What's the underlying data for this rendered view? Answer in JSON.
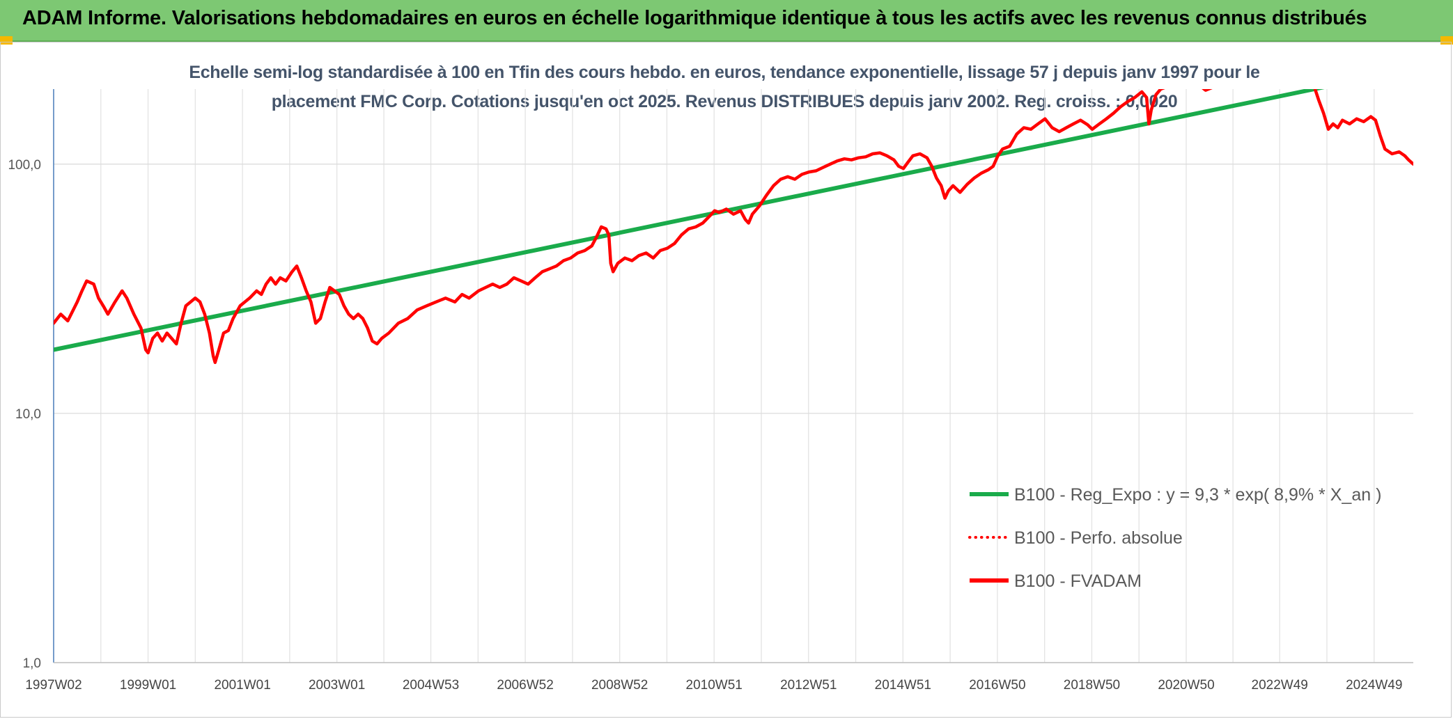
{
  "header": {
    "title": "ADAM Informe. Valorisations hebdomadaires en euros en échelle logarithmique identique à tous les actifs avec les revenus connus distribués"
  },
  "chart_data": {
    "type": "line",
    "subtitle_lines": [
      "Echelle semi-log standardisée à 100 en Tfin des cours hebdo. en euros, tendance exponentielle, lissage 57 j depuis janv 1997 pour le",
      "placement FMC Corp. Cotations jusqu'en oct 2025. Revenus DISTRIBUES depuis janv 2002. Reg. croiss. : 0,0020"
    ],
    "y_scale": "log",
    "ylim": [
      1,
      200
    ],
    "y_ticks": [
      {
        "value": 1,
        "label": "1,0"
      },
      {
        "value": 10,
        "label": "10,0"
      },
      {
        "value": 100,
        "label": "100,0"
      }
    ],
    "x_range": [
      1997.0,
      2025.8
    ],
    "x_ticks": [
      {
        "value": 1997.0,
        "label": "1997W02"
      },
      {
        "value": 1999.0,
        "label": "1999W01"
      },
      {
        "value": 2001.0,
        "label": "2001W01"
      },
      {
        "value": 2003.0,
        "label": "2003W01"
      },
      {
        "value": 2004.99,
        "label": "2004W53"
      },
      {
        "value": 2006.99,
        "label": "2006W52"
      },
      {
        "value": 2008.99,
        "label": "2008W52"
      },
      {
        "value": 2010.99,
        "label": "2010W51"
      },
      {
        "value": 2012.99,
        "label": "2012W51"
      },
      {
        "value": 2014.99,
        "label": "2014W51"
      },
      {
        "value": 2016.99,
        "label": "2016W50"
      },
      {
        "value": 2018.99,
        "label": "2018W50"
      },
      {
        "value": 2020.99,
        "label": "2020W50"
      },
      {
        "value": 2022.97,
        "label": "2022W49"
      },
      {
        "value": 2024.97,
        "label": "2024W49"
      }
    ],
    "grid": true,
    "legend_position": "bottom-right",
    "series": [
      {
        "name": "B100 - Reg_Expo : y = 9,3 * exp( 8,9% *  X_an )",
        "color": "#1aab4b",
        "style": "solid",
        "points": [
          [
            1997.0,
            18.0
          ],
          [
            2024.5,
            215.0
          ]
        ]
      },
      {
        "name": "B100 - Perfo. absolue",
        "color": "#ff0000",
        "style": "dotted",
        "points": []
      },
      {
        "name": "B100 - FVADAM",
        "color": "#ff0000",
        "style": "solid",
        "points": [
          [
            1997.0,
            23
          ],
          [
            1997.15,
            25
          ],
          [
            1997.3,
            23.5
          ],
          [
            1997.5,
            28
          ],
          [
            1997.6,
            31
          ],
          [
            1997.7,
            34
          ],
          [
            1997.85,
            33
          ],
          [
            1997.95,
            29
          ],
          [
            1998.05,
            27
          ],
          [
            1998.15,
            25
          ],
          [
            1998.3,
            28
          ],
          [
            1998.45,
            31
          ],
          [
            1998.55,
            29
          ],
          [
            1998.7,
            25
          ],
          [
            1998.85,
            22
          ],
          [
            1998.95,
            18
          ],
          [
            1999.0,
            17.5
          ],
          [
            1999.1,
            20
          ],
          [
            1999.2,
            21
          ],
          [
            1999.3,
            19.5
          ],
          [
            1999.4,
            21
          ],
          [
            1999.5,
            20
          ],
          [
            1999.6,
            19
          ],
          [
            1999.7,
            23
          ],
          [
            1999.8,
            27
          ],
          [
            1999.9,
            28
          ],
          [
            2000.0,
            29
          ],
          [
            2000.1,
            28
          ],
          [
            2000.2,
            25
          ],
          [
            2000.3,
            21
          ],
          [
            2000.38,
            17
          ],
          [
            2000.42,
            16
          ],
          [
            2000.5,
            18
          ],
          [
            2000.6,
            21
          ],
          [
            2000.7,
            21.5
          ],
          [
            2000.8,
            24
          ],
          [
            2000.95,
            27
          ],
          [
            2001.05,
            28
          ],
          [
            2001.15,
            29
          ],
          [
            2001.3,
            31
          ],
          [
            2001.4,
            30
          ],
          [
            2001.5,
            33
          ],
          [
            2001.6,
            35
          ],
          [
            2001.7,
            33
          ],
          [
            2001.8,
            35
          ],
          [
            2001.92,
            34
          ],
          [
            2002.05,
            37
          ],
          [
            2002.15,
            39
          ],
          [
            2002.25,
            35
          ],
          [
            2002.35,
            31
          ],
          [
            2002.45,
            28
          ],
          [
            2002.55,
            23
          ],
          [
            2002.65,
            24
          ],
          [
            2002.75,
            28
          ],
          [
            2002.85,
            32
          ],
          [
            2002.95,
            31
          ],
          [
            2003.05,
            30
          ],
          [
            2003.15,
            27
          ],
          [
            2003.25,
            25
          ],
          [
            2003.35,
            24
          ],
          [
            2003.45,
            25
          ],
          [
            2003.55,
            24
          ],
          [
            2003.65,
            22
          ],
          [
            2003.75,
            19.5
          ],
          [
            2003.85,
            19
          ],
          [
            2003.95,
            20
          ],
          [
            2004.1,
            21
          ],
          [
            2004.3,
            23
          ],
          [
            2004.5,
            24
          ],
          [
            2004.7,
            26
          ],
          [
            2004.9,
            27
          ],
          [
            2005.1,
            28
          ],
          [
            2005.3,
            29
          ],
          [
            2005.5,
            28
          ],
          [
            2005.65,
            30
          ],
          [
            2005.8,
            29
          ],
          [
            2006.0,
            31
          ],
          [
            2006.15,
            32
          ],
          [
            2006.3,
            33
          ],
          [
            2006.45,
            32
          ],
          [
            2006.6,
            33
          ],
          [
            2006.75,
            35
          ],
          [
            2006.9,
            34
          ],
          [
            2007.05,
            33
          ],
          [
            2007.2,
            35
          ],
          [
            2007.35,
            37
          ],
          [
            2007.5,
            38
          ],
          [
            2007.65,
            39
          ],
          [
            2007.8,
            41
          ],
          [
            2007.95,
            42
          ],
          [
            2008.1,
            44
          ],
          [
            2008.25,
            45
          ],
          [
            2008.4,
            47
          ],
          [
            2008.5,
            51
          ],
          [
            2008.6,
            56
          ],
          [
            2008.7,
            55
          ],
          [
            2008.76,
            52
          ],
          [
            2008.8,
            40
          ],
          [
            2008.85,
            37
          ],
          [
            2008.95,
            40
          ],
          [
            2009.1,
            42
          ],
          [
            2009.25,
            41
          ],
          [
            2009.4,
            43
          ],
          [
            2009.55,
            44
          ],
          [
            2009.7,
            42
          ],
          [
            2009.85,
            45
          ],
          [
            2010.0,
            46
          ],
          [
            2010.15,
            48
          ],
          [
            2010.3,
            52
          ],
          [
            2010.45,
            55
          ],
          [
            2010.6,
            56
          ],
          [
            2010.75,
            58
          ],
          [
            2010.9,
            62
          ],
          [
            2011.0,
            65
          ],
          [
            2011.1,
            64
          ],
          [
            2011.25,
            66
          ],
          [
            2011.4,
            63
          ],
          [
            2011.55,
            65
          ],
          [
            2011.65,
            60
          ],
          [
            2011.72,
            58
          ],
          [
            2011.8,
            63
          ],
          [
            2011.95,
            68
          ],
          [
            2012.1,
            75
          ],
          [
            2012.25,
            82
          ],
          [
            2012.4,
            87
          ],
          [
            2012.55,
            89
          ],
          [
            2012.7,
            87
          ],
          [
            2012.85,
            91
          ],
          [
            2013.0,
            93
          ],
          [
            2013.15,
            94
          ],
          [
            2013.3,
            97
          ],
          [
            2013.45,
            100
          ],
          [
            2013.6,
            103
          ],
          [
            2013.75,
            105
          ],
          [
            2013.9,
            104
          ],
          [
            2014.05,
            106
          ],
          [
            2014.2,
            107
          ],
          [
            2014.35,
            110
          ],
          [
            2014.5,
            111
          ],
          [
            2014.65,
            108
          ],
          [
            2014.8,
            104
          ],
          [
            2014.9,
            98
          ],
          [
            2015.0,
            96
          ],
          [
            2015.1,
            102
          ],
          [
            2015.2,
            108
          ],
          [
            2015.35,
            110
          ],
          [
            2015.5,
            106
          ],
          [
            2015.6,
            98
          ],
          [
            2015.7,
            88
          ],
          [
            2015.8,
            82
          ],
          [
            2015.88,
            73
          ],
          [
            2015.95,
            78
          ],
          [
            2016.05,
            82
          ],
          [
            2016.2,
            77
          ],
          [
            2016.35,
            83
          ],
          [
            2016.5,
            88
          ],
          [
            2016.65,
            92
          ],
          [
            2016.8,
            95
          ],
          [
            2016.9,
            98
          ],
          [
            2017.0,
            108
          ],
          [
            2017.1,
            115
          ],
          [
            2017.25,
            118
          ],
          [
            2017.4,
            132
          ],
          [
            2017.55,
            140
          ],
          [
            2017.7,
            138
          ],
          [
            2017.85,
            145
          ],
          [
            2018.0,
            152
          ],
          [
            2018.15,
            140
          ],
          [
            2018.3,
            135
          ],
          [
            2018.45,
            140
          ],
          [
            2018.6,
            145
          ],
          [
            2018.75,
            150
          ],
          [
            2018.9,
            144
          ],
          [
            2019.0,
            138
          ],
          [
            2019.15,
            145
          ],
          [
            2019.3,
            152
          ],
          [
            2019.45,
            160
          ],
          [
            2019.6,
            170
          ],
          [
            2019.75,
            178
          ],
          [
            2019.9,
            185
          ],
          [
            2020.05,
            195
          ],
          [
            2020.15,
            185
          ],
          [
            2020.2,
            145
          ],
          [
            2020.25,
            165
          ],
          [
            2020.35,
            190
          ],
          [
            2020.45,
            200
          ],
          [
            2020.6,
            205
          ],
          [
            2020.8,
            210
          ],
          [
            2021.0,
            208
          ],
          [
            2021.2,
            212
          ],
          [
            2021.4,
            198
          ],
          [
            2021.6,
            205
          ],
          [
            2021.8,
            215
          ],
          [
            2022.0,
            230
          ],
          [
            2022.3,
            250
          ],
          [
            2022.6,
            260
          ],
          [
            2022.9,
            255
          ],
          [
            2023.2,
            250
          ],
          [
            2023.5,
            235
          ],
          [
            2023.7,
            205
          ],
          [
            2023.8,
            180
          ],
          [
            2023.9,
            160
          ],
          [
            2024.0,
            138
          ],
          [
            2024.1,
            145
          ],
          [
            2024.2,
            140
          ],
          [
            2024.3,
            150
          ],
          [
            2024.45,
            145
          ],
          [
            2024.6,
            152
          ],
          [
            2024.75,
            148
          ],
          [
            2024.9,
            155
          ],
          [
            2025.0,
            150
          ],
          [
            2025.1,
            130
          ],
          [
            2025.2,
            115
          ],
          [
            2025.35,
            110
          ],
          [
            2025.5,
            112
          ],
          [
            2025.62,
            108
          ],
          [
            2025.7,
            104
          ],
          [
            2025.8,
            100
          ]
        ]
      }
    ]
  }
}
